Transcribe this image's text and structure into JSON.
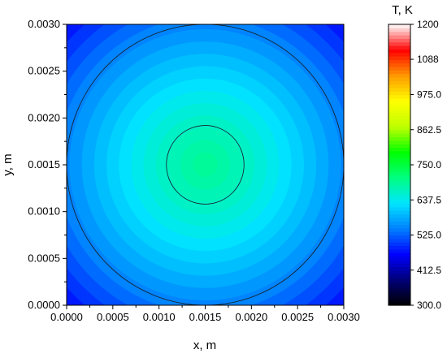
{
  "chart_data": [
    {
      "type": "heatmap",
      "title": "",
      "xlabel": "x, m",
      "ylabel": "y, m",
      "xlim": [
        0.0,
        0.003
      ],
      "ylim": [
        0.0,
        0.003
      ],
      "x_ticks": [
        "0.0000",
        "0.0005",
        "0.0010",
        "0.0015",
        "0.0020",
        "0.0025",
        "0.0030"
      ],
      "y_ticks": [
        "0.0000",
        "0.0005",
        "0.0010",
        "0.0015",
        "0.0020",
        "0.0025",
        "0.0030"
      ],
      "field": {
        "shape": "radial",
        "center": [
          0.0015,
          0.0015
        ],
        "value_at_center": 695,
        "value_at_corner": 470,
        "contour_lines_at_radius_m": [
          0.00042,
          0.0015
        ]
      },
      "colorbar": {
        "title": "T, K",
        "range": [
          300.0,
          1200
        ],
        "ticks": [
          "1200",
          "1088",
          "975.0",
          "862.5",
          "750.0",
          "637.5",
          "525.0",
          "412.5",
          "300.0"
        ],
        "colormap": [
          "#000000",
          "#000077",
          "#0000ff",
          "#0080ff",
          "#00e5ff",
          "#00ff80",
          "#00ff00",
          "#c0ff00",
          "#ffff00",
          "#ff9900",
          "#ff0000",
          "#ffffff"
        ]
      }
    }
  ]
}
